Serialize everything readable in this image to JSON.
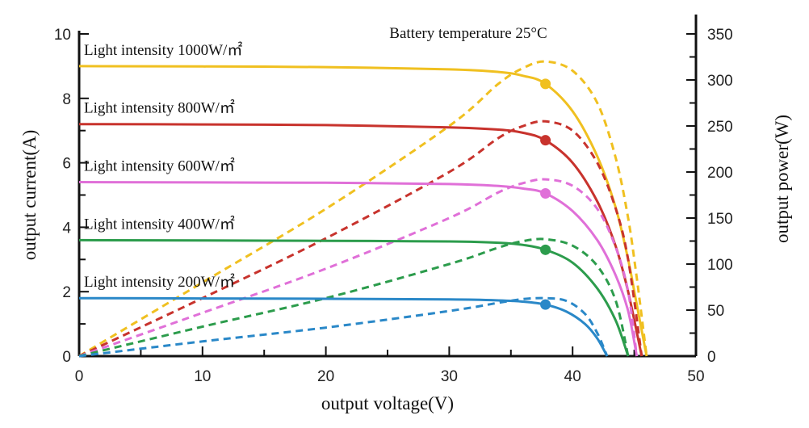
{
  "chart_data": {
    "type": "line",
    "title": "",
    "annotation": "Battery temperature 25°C",
    "xlabel": "output voltage(V)",
    "ylabel_left": "output current(A)",
    "ylabel_right": "output power(W)",
    "xlim": [
      0,
      50
    ],
    "ylim_left": [
      0,
      10
    ],
    "ylim_right": [
      0,
      350
    ],
    "x_ticks": [
      "0",
      "10",
      "20",
      "30",
      "40",
      "50"
    ],
    "y_left_ticks": [
      "0",
      "2",
      "4",
      "6",
      "8",
      "10"
    ],
    "y_right_ticks": [
      "0",
      "50",
      "100",
      "150",
      "200",
      "250",
      "300",
      "350"
    ],
    "grid": false,
    "series": [
      {
        "name": "Light intensity 1000W/㎡",
        "color": "#f0c020",
        "isc": 9.0,
        "voc": 46.0,
        "vmp": 37.8,
        "imp": 8.45,
        "pmax": 320,
        "current": {
          "x": [
            0,
            10,
            20,
            30,
            34,
            36,
            37.8,
            40,
            42,
            43.5,
            44.5,
            45.2,
            46.0
          ],
          "y": [
            9.0,
            8.99,
            8.97,
            8.9,
            8.82,
            8.7,
            8.45,
            7.6,
            6.2,
            4.6,
            3.0,
            1.6,
            0
          ]
        },
        "power": {
          "x": [
            0,
            10,
            20,
            30,
            34,
            36,
            37.8,
            40,
            42,
            43.5,
            44.5,
            45.2,
            46.0
          ],
          "y": [
            0,
            80,
            160,
            250,
            296,
            313,
            320,
            310,
            275,
            215,
            150,
            85,
            0
          ]
        }
      },
      {
        "name": "Light intensity 800W/㎡",
        "color": "#c8332d",
        "isc": 7.2,
        "voc": 45.6,
        "vmp": 37.8,
        "imp": 6.7,
        "pmax": 255,
        "current": {
          "x": [
            0,
            10,
            20,
            30,
            34,
            36,
            37.8,
            40,
            42,
            43.5,
            44.5,
            45.6
          ],
          "y": [
            7.2,
            7.19,
            7.17,
            7.1,
            7.03,
            6.93,
            6.7,
            6.0,
            4.8,
            3.4,
            2.0,
            0
          ]
        },
        "power": {
          "x": [
            0,
            10,
            20,
            30,
            34,
            36,
            37.8,
            40,
            42,
            43.5,
            44.5,
            45.6
          ],
          "y": [
            0,
            63,
            128,
            200,
            237,
            250,
            255,
            245,
            210,
            160,
            105,
            0
          ]
        }
      },
      {
        "name": "Light intensity 600W/㎡",
        "color": "#e070d8",
        "isc": 5.4,
        "voc": 45.2,
        "vmp": 37.8,
        "imp": 5.05,
        "pmax": 192,
        "current": {
          "x": [
            0,
            10,
            20,
            30,
            34,
            36,
            37.8,
            40,
            42,
            43.5,
            44.5,
            45.2
          ],
          "y": [
            5.4,
            5.39,
            5.38,
            5.34,
            5.28,
            5.2,
            5.05,
            4.5,
            3.6,
            2.5,
            1.4,
            0
          ]
        },
        "power": {
          "x": [
            0,
            10,
            20,
            30,
            34,
            36,
            37.8,
            40,
            42,
            43.5,
            44.5,
            45.2
          ],
          "y": [
            0,
            47,
            95,
            150,
            178,
            188,
            192,
            185,
            160,
            118,
            70,
            0
          ]
        }
      },
      {
        "name": "Light intensity 400W/㎡",
        "color": "#2c9c4c",
        "isc": 3.6,
        "voc": 44.5,
        "vmp": 37.8,
        "imp": 3.3,
        "pmax": 127,
        "current": {
          "x": [
            0,
            10,
            20,
            30,
            34,
            36,
            37.8,
            40,
            42,
            43.5,
            44.5
          ],
          "y": [
            3.6,
            3.59,
            3.58,
            3.56,
            3.52,
            3.45,
            3.3,
            2.9,
            2.1,
            1.1,
            0
          ]
        },
        "power": {
          "x": [
            0,
            10,
            20,
            30,
            34,
            36,
            37.8,
            40,
            42,
            43.5,
            44.5
          ],
          "y": [
            0,
            32,
            63,
            100,
            118,
            125,
            127,
            120,
            98,
            60,
            0
          ]
        }
      },
      {
        "name": "Light intensity 200W/㎡",
        "color": "#2a88c8",
        "isc": 1.8,
        "voc": 42.8,
        "vmp": 37.8,
        "imp": 1.6,
        "pmax": 63,
        "current": {
          "x": [
            0,
            10,
            20,
            30,
            34,
            36,
            37.8,
            39.5,
            41,
            42,
            42.8
          ],
          "y": [
            1.8,
            1.79,
            1.78,
            1.76,
            1.73,
            1.69,
            1.6,
            1.38,
            1.0,
            0.55,
            0
          ]
        },
        "power": {
          "x": [
            0,
            10,
            20,
            30,
            34,
            36,
            37.8,
            39.5,
            41,
            42,
            42.8
          ],
          "y": [
            0,
            16,
            31,
            49,
            58,
            62,
            63,
            60,
            46,
            25,
            0
          ]
        }
      }
    ]
  }
}
